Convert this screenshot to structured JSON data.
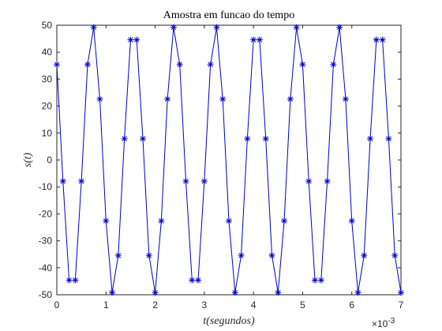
{
  "chart_data": {
    "type": "line",
    "title": "Amostra em funcao do tempo",
    "xlabel": "t(segundos)",
    "ylabel": "s(t)",
    "x_multiplier_label": "×10",
    "x_multiplier_exp": "-3",
    "xlim": [
      0,
      7
    ],
    "ylim": [
      -50,
      50
    ],
    "x_ticks": [
      0,
      1,
      2,
      3,
      4,
      5,
      6,
      7
    ],
    "y_ticks": [
      -50,
      -40,
      -30,
      -20,
      -10,
      0,
      10,
      20,
      30,
      40,
      50
    ],
    "grid": false,
    "line_color": "#0000cc",
    "marker": "asterisk",
    "series": [
      {
        "x": [
          0,
          0.125,
          0.25,
          0.375,
          0.5,
          0.625,
          0.75,
          0.875,
          1.0,
          1.125,
          1.25,
          1.375,
          1.5,
          1.625,
          1.75,
          1.875,
          2.0,
          2.125,
          2.25,
          2.375,
          2.5,
          2.625,
          2.75,
          2.875,
          3.0,
          3.125,
          3.25,
          3.375,
          3.5,
          3.625,
          3.75,
          3.875,
          4.0,
          4.125,
          4.25,
          4.375,
          4.5,
          4.625,
          4.75,
          4.875,
          5.0,
          5.125,
          5.25,
          5.375,
          5.5,
          5.625,
          5.75,
          5.875,
          6.0,
          6.125,
          6.25,
          6.375,
          6.5,
          6.625,
          6.75,
          6.875,
          7.0
        ],
        "y": [
          35.4,
          -7.9,
          -44.6,
          -44.6,
          -7.9,
          35.4,
          49.2,
          22.6,
          -22.6,
          -49.2,
          -35.4,
          7.9,
          44.6,
          44.6,
          7.9,
          -35.4,
          -49.2,
          -22.6,
          22.6,
          49.2,
          35.4,
          -7.9,
          -44.6,
          -44.6,
          -7.9,
          35.4,
          49.2,
          22.6,
          -22.6,
          -49.2,
          -35.4,
          7.9,
          44.6,
          44.6,
          7.9,
          -35.4,
          -49.2,
          -22.6,
          22.6,
          49.2,
          35.4,
          -7.9,
          -44.6,
          -44.6,
          -7.9,
          35.4,
          49.2,
          22.6,
          -22.6,
          -49.2,
          -35.4,
          7.9,
          44.6,
          44.6,
          7.9,
          -35.4,
          -49.2
        ]
      }
    ]
  }
}
